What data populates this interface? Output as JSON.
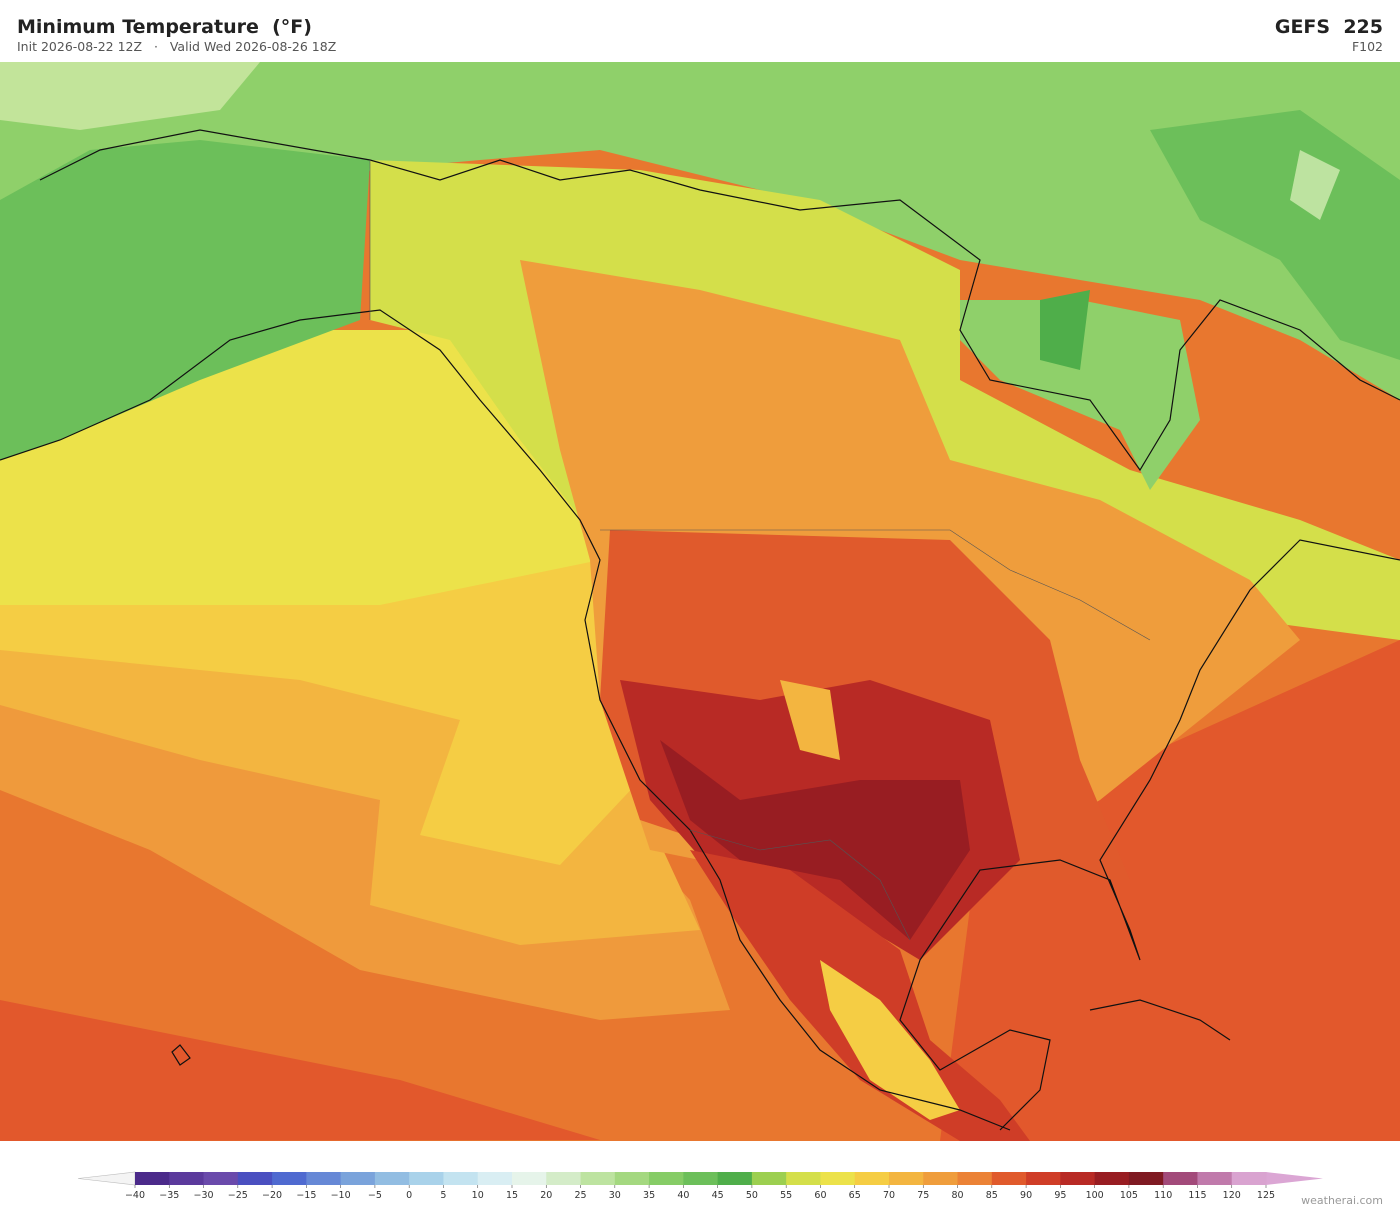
{
  "header": {
    "title": "Minimum Temperature  (°F)",
    "subtitle": "Init 2026-08-22 12Z   ·   Valid Wed 2026-08-26 18Z",
    "model": "GEFS  225",
    "forecast_hour": "F102"
  },
  "colorbar": {
    "ticks": [
      "−40",
      "−35",
      "−30",
      "−25",
      "−20",
      "−15",
      "−10",
      "−5",
      "0",
      "5",
      "10",
      "15",
      "20",
      "25",
      "30",
      "35",
      "40",
      "45",
      "50",
      "55",
      "60",
      "65",
      "70",
      "75",
      "80",
      "85",
      "90",
      "95",
      "100",
      "105",
      "110",
      "115",
      "120",
      "125"
    ],
    "colors": [
      "#4b2a8a",
      "#5b3a9c",
      "#6a4aab",
      "#4a4fc0",
      "#4f6ad0",
      "#6688d6",
      "#7aa3db",
      "#92bde2",
      "#a9d2ea",
      "#c3e3f0",
      "#d9eef3",
      "#e6f4ea",
      "#d4ecc8",
      "#bde3a0",
      "#a4d880",
      "#86cc66",
      "#6cbf5a",
      "#4fae4a",
      "#9ccf50",
      "#d4df4a",
      "#ece24a",
      "#f5cd44",
      "#f3b540",
      "#ef9d3c",
      "#eb8236",
      "#e05a2c",
      "#cf3d27",
      "#b82a25",
      "#981d22",
      "#7f1a22",
      "#a24a7a",
      "#c07aab",
      "#d9a3d0"
    ],
    "under_color": "#f4f4f4",
    "over_color": "#dba6d4"
  },
  "footer": {
    "watermark": "weatherai.com"
  }
}
